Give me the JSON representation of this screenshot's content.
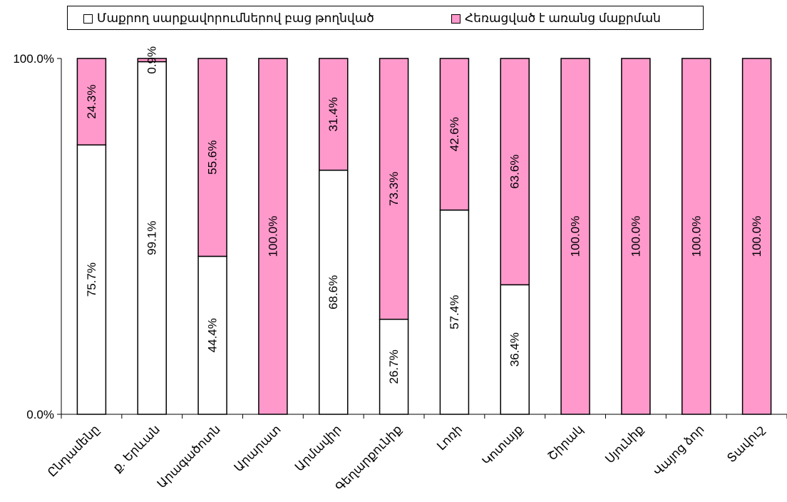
{
  "chart_data": {
    "type": "bar",
    "stacked": true,
    "percent": true,
    "categories": [
      "Ընդամենը",
      "ք. Երևան",
      "Արագածոտն",
      "Արարատ",
      "Արմավիր",
      "Գեղարքունիք",
      "Լոռի",
      "Կոտայք",
      "Շիրակ",
      "Սյունիք",
      "Վայոց ձոր",
      "Տավուշ"
    ],
    "series": [
      {
        "name": "Մաքրող սարքավորումներով բաց թողնված",
        "color": "#ffffff",
        "values": [
          75.7,
          99.1,
          44.4,
          0,
          68.6,
          26.7,
          57.4,
          36.4,
          0,
          0,
          0,
          0
        ],
        "labels": [
          "75.7%",
          "99.1%",
          "44.4%",
          "",
          "68.6%",
          "26.7%",
          "57.4%",
          "36.4%",
          "",
          "",
          "",
          ""
        ]
      },
      {
        "name": "Հեռացված է առանց մաքրման",
        "color": "#ff99cc",
        "values": [
          24.3,
          0.9,
          55.6,
          100.0,
          31.4,
          73.3,
          42.6,
          63.6,
          100.0,
          100.0,
          100.0,
          100.0
        ],
        "labels": [
          "24.3%",
          "0.9%",
          "55.6%",
          "100.0%",
          "31.4%",
          "73.3%",
          "42.6%",
          "63.6%",
          "100.0%",
          "100.0%",
          "100.0%",
          "100.0%"
        ]
      }
    ],
    "ylim": [
      0,
      100
    ],
    "yticks": [
      "0.0%",
      "100.0%"
    ],
    "legend_position": "top",
    "grid": false
  }
}
